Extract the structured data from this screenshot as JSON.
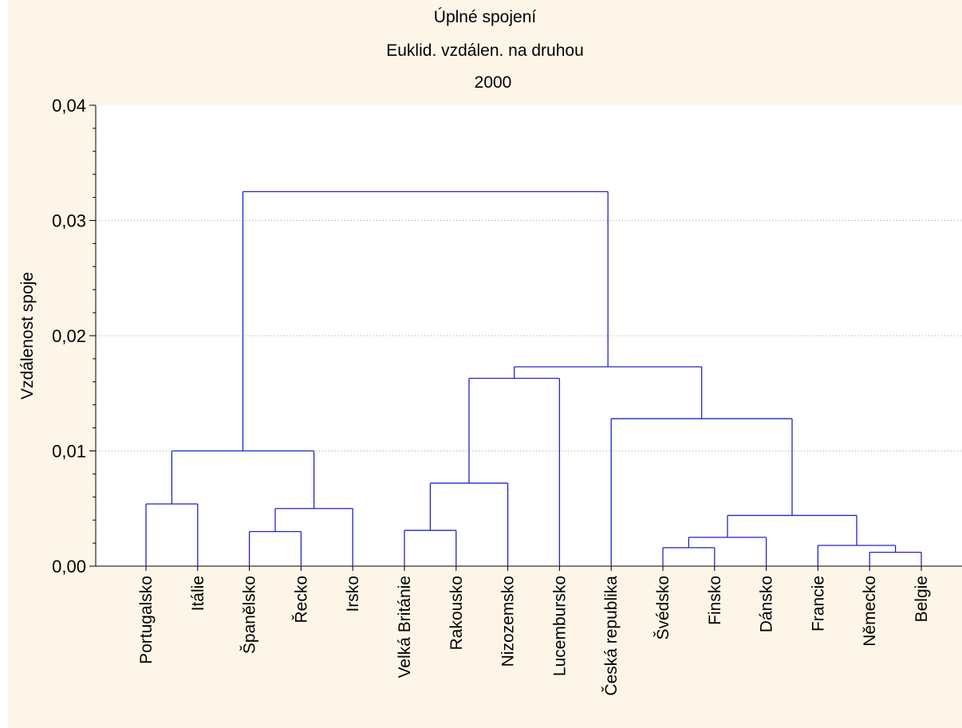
{
  "chart_data": {
    "type": "dendrogram",
    "title": "Úplné spojení",
    "subtitle": "Euklid. vzdálen. na druhou",
    "year": "2000",
    "xlabel": "",
    "ylabel": "Vzdálenost spoje",
    "ylim": [
      0,
      0.04
    ],
    "yticks": [
      "0,00",
      "0,01",
      "0,02",
      "0,03",
      "0,04"
    ],
    "grid": true,
    "line_color": "#2222cc",
    "leaves": [
      "Portugalsko",
      "Itálie",
      "Španělsko",
      "Řecko",
      "Irsko",
      "Velká Británie",
      "Rakousko",
      "Nizozemsko",
      "Lucembursko",
      "Česká republika",
      "Švédsko",
      "Finsko",
      "Dánsko",
      "Francie",
      "Německo",
      "Belgie"
    ],
    "merges": [
      {
        "a": "L:Portugalsko",
        "b": "L:Itálie",
        "height": 0.0054,
        "id": "c1"
      },
      {
        "a": "L:Španělsko",
        "b": "L:Řecko",
        "height": 0.003,
        "id": "c2"
      },
      {
        "a": "c2",
        "b": "L:Irsko",
        "height": 0.005,
        "id": "c3"
      },
      {
        "a": "c1",
        "b": "c3",
        "height": 0.01,
        "id": "c4"
      },
      {
        "a": "L:Velká Británie",
        "b": "L:Rakousko",
        "height": 0.0031,
        "id": "c5"
      },
      {
        "a": "c5",
        "b": "L:Nizozemsko",
        "height": 0.0072,
        "id": "c6"
      },
      {
        "a": "c6",
        "b": "L:Lucembursko",
        "height": 0.0163,
        "id": "c7"
      },
      {
        "a": "L:Německo",
        "b": "L:Belgie",
        "height": 0.0012,
        "id": "c8"
      },
      {
        "a": "L:Švédsko",
        "b": "L:Finsko",
        "height": 0.0016,
        "id": "c9"
      },
      {
        "a": "L:Francie",
        "b": "c8",
        "height": 0.0018,
        "id": "c10"
      },
      {
        "a": "c9",
        "b": "L:Dánsko",
        "height": 0.0025,
        "id": "c11"
      },
      {
        "a": "c11",
        "b": "c10",
        "height": 0.0044,
        "id": "c12"
      },
      {
        "a": "L:Česká republika",
        "b": "c12",
        "height": 0.0128,
        "id": "c13"
      },
      {
        "a": "c7",
        "b": "c13",
        "height": 0.0173,
        "id": "c14"
      },
      {
        "a": "c4",
        "b": "c14",
        "height": 0.0325,
        "id": "c15"
      }
    ]
  }
}
